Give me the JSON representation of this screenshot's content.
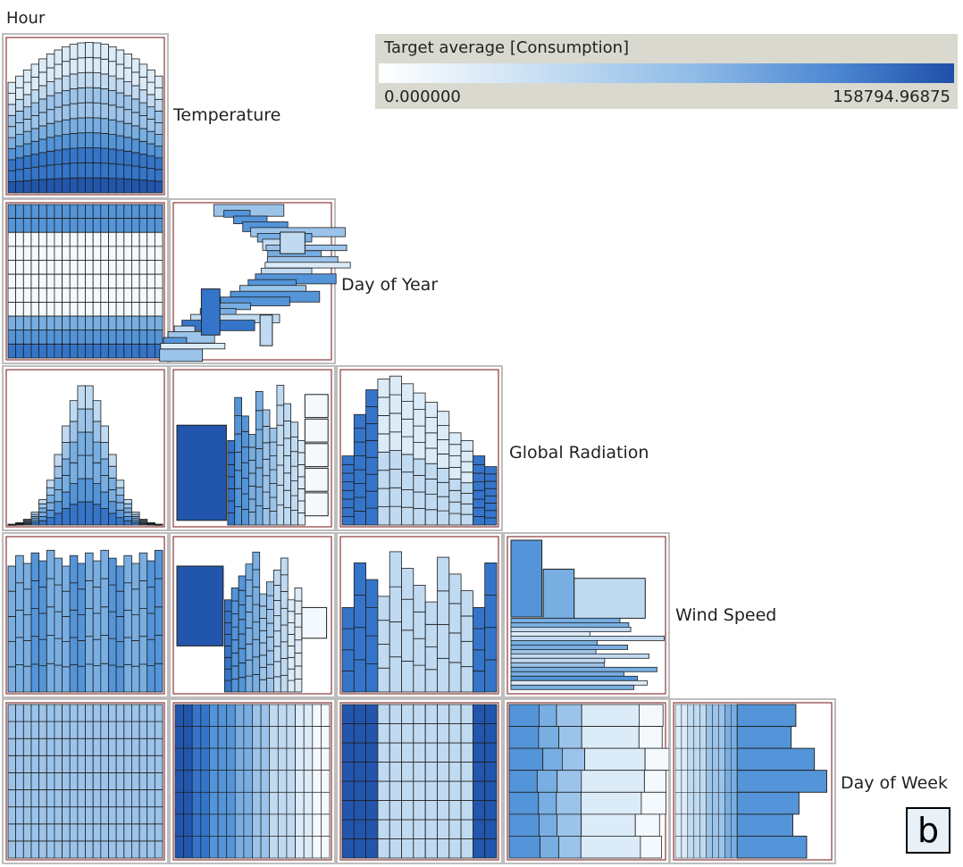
{
  "chart_data": {
    "type": "heatmap",
    "subtype": "mosaic-matrix",
    "variables": [
      "Hour",
      "Temperature",
      "Day of Year",
      "Global Radiation",
      "Wind Speed",
      "Day of Week"
    ],
    "color_legend": {
      "title": "Target average [Consumption]",
      "min_label": "0.000000",
      "max_label": "158794.96875",
      "min": 0.0,
      "max": 158794.96875,
      "colors": [
        "#ffffff",
        "#cfe3f5",
        "#8fbbe6",
        "#4b86d1",
        "#1f4fa8"
      ]
    },
    "grid": "lower-triangular",
    "panel_label": "b"
  }
}
